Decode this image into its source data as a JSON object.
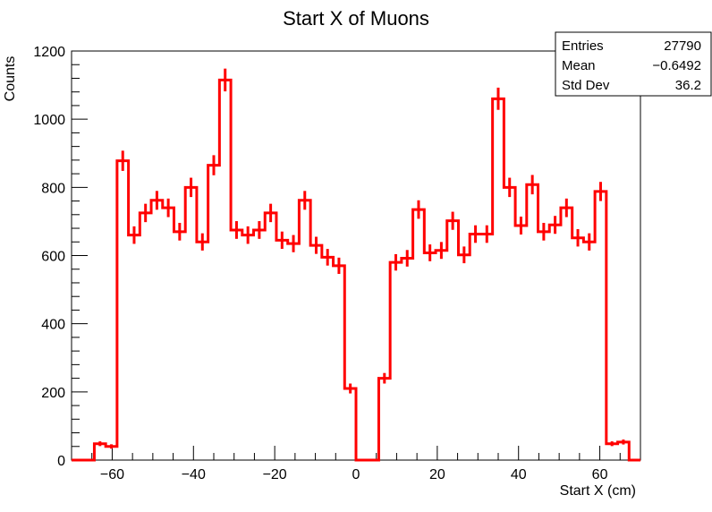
{
  "chart_data": {
    "type": "bar",
    "title": "Start X of Muons",
    "xlabel": "Start X (cm)",
    "ylabel": "Counts",
    "xlim": [
      -70,
      70
    ],
    "ylim": [
      0,
      1200
    ],
    "x_ticks": [
      -60,
      -40,
      -20,
      0,
      20,
      40,
      60
    ],
    "x_tick_labels": [
      "−60",
      "−40",
      "−20",
      "0",
      "20",
      "40",
      "60"
    ],
    "y_ticks": [
      0,
      200,
      400,
      600,
      800,
      1000,
      1200
    ],
    "y_tick_labels": [
      "0",
      "200",
      "400",
      "600",
      "800",
      "1000",
      "1200"
    ],
    "line_color": "#ff0000",
    "bin_edges": [
      -70,
      -67.2,
      -64.4,
      -61.6,
      -58.8,
      -56,
      -53.2,
      -50.4,
      -47.6,
      -44.8,
      -42,
      -39.2,
      -36.4,
      -33.6,
      -30.8,
      -28,
      -25.2,
      -22.4,
      -19.6,
      -16.8,
      -14,
      -11.2,
      -8.4,
      -5.6,
      -2.8,
      0,
      2.8,
      5.6,
      8.4,
      11.2,
      14,
      16.8,
      19.6,
      22.4,
      25.2,
      28,
      30.8,
      33.6,
      36.4,
      39.2,
      42,
      44.8,
      47.6,
      50.4,
      53.2,
      56,
      58.8,
      61.6,
      64.4,
      67.2,
      70
    ],
    "values": [
      0,
      0,
      48,
      40,
      878,
      660,
      725,
      762,
      740,
      670,
      800,
      640,
      865,
      1115,
      675,
      660,
      675,
      725,
      645,
      635,
      762,
      630,
      595,
      570,
      210,
      0,
      0,
      240,
      580,
      592,
      735,
      608,
      615,
      702,
      602,
      663,
      663,
      1060,
      800,
      688,
      808,
      670,
      690,
      740,
      652,
      640,
      788,
      48,
      53,
      0
    ]
  },
  "stats_box": {
    "entries_label": "Entries",
    "entries_value": "27790",
    "mean_label": "Mean",
    "mean_value": "−0.6492",
    "stddev_label": "Std Dev",
    "stddev_value": "36.2"
  }
}
